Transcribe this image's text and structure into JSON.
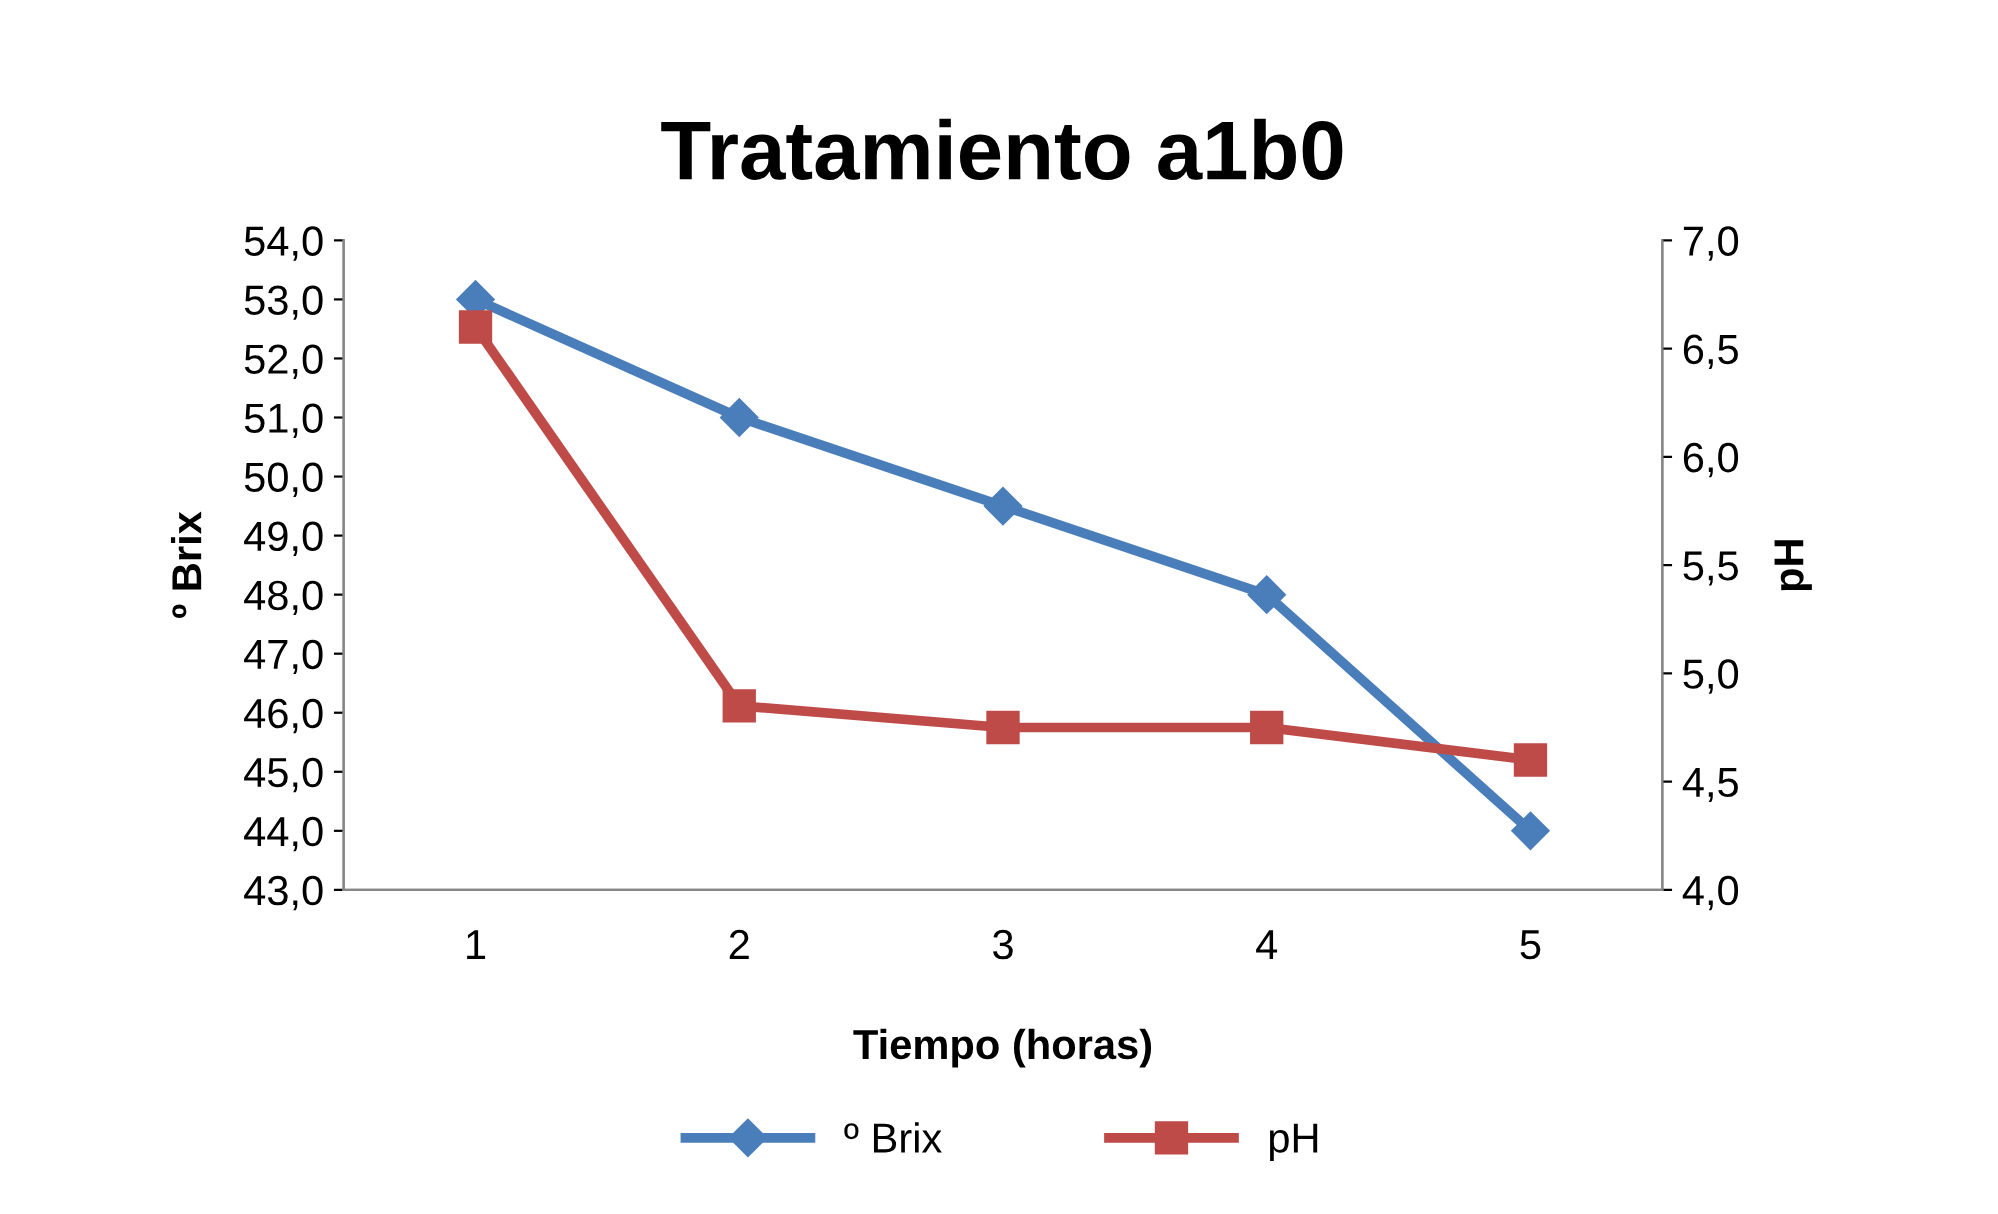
{
  "chart_data": {
    "type": "line",
    "title": "Tratamiento a1b0",
    "xlabel": "Tiempo (horas)",
    "ylabel": "º Brix",
    "y2label": "pH",
    "categories": [
      "1",
      "2",
      "3",
      "4",
      "5"
    ],
    "series": [
      {
        "name": "º Brix",
        "color": "#4a7ebb",
        "marker": "diamond",
        "values": [
          53.0,
          51.0,
          49.5,
          48.0,
          44.0
        ]
      },
      {
        "name": "pH",
        "color": "#be4b48",
        "marker": "square",
        "axis": "y2",
        "values": [
          6.6,
          4.85,
          4.75,
          4.75,
          4.6
        ]
      }
    ],
    "ylim": [
      43,
      54
    ],
    "yticks": [
      {
        "value": 43,
        "label": "43,0"
      },
      {
        "value": 44,
        "label": "44,0"
      },
      {
        "value": 45,
        "label": "45,0"
      },
      {
        "value": 46,
        "label": "46,0"
      },
      {
        "value": 47,
        "label": "47,0"
      },
      {
        "value": 48,
        "label": "48,0"
      },
      {
        "value": 49,
        "label": "49,0"
      },
      {
        "value": 50,
        "label": "50,0"
      },
      {
        "value": 51,
        "label": "51,0"
      },
      {
        "value": 52,
        "label": "52,0"
      },
      {
        "value": 53,
        "label": "53,0"
      },
      {
        "value": 54,
        "label": "54,0"
      }
    ],
    "y2lim": [
      4.0,
      7.0
    ],
    "y2ticks": [
      {
        "value": 4.0,
        "label": "4,0"
      },
      {
        "value": 4.5,
        "label": "4,5"
      },
      {
        "value": 5.0,
        "label": "5,0"
      },
      {
        "value": 5.5,
        "label": "5,5"
      },
      {
        "value": 6.0,
        "label": "6,0"
      },
      {
        "value": 6.5,
        "label": "6,5"
      },
      {
        "value": 7.0,
        "label": "7,0"
      }
    ],
    "grid": false,
    "legend": "bottom",
    "line_style": "solid"
  }
}
